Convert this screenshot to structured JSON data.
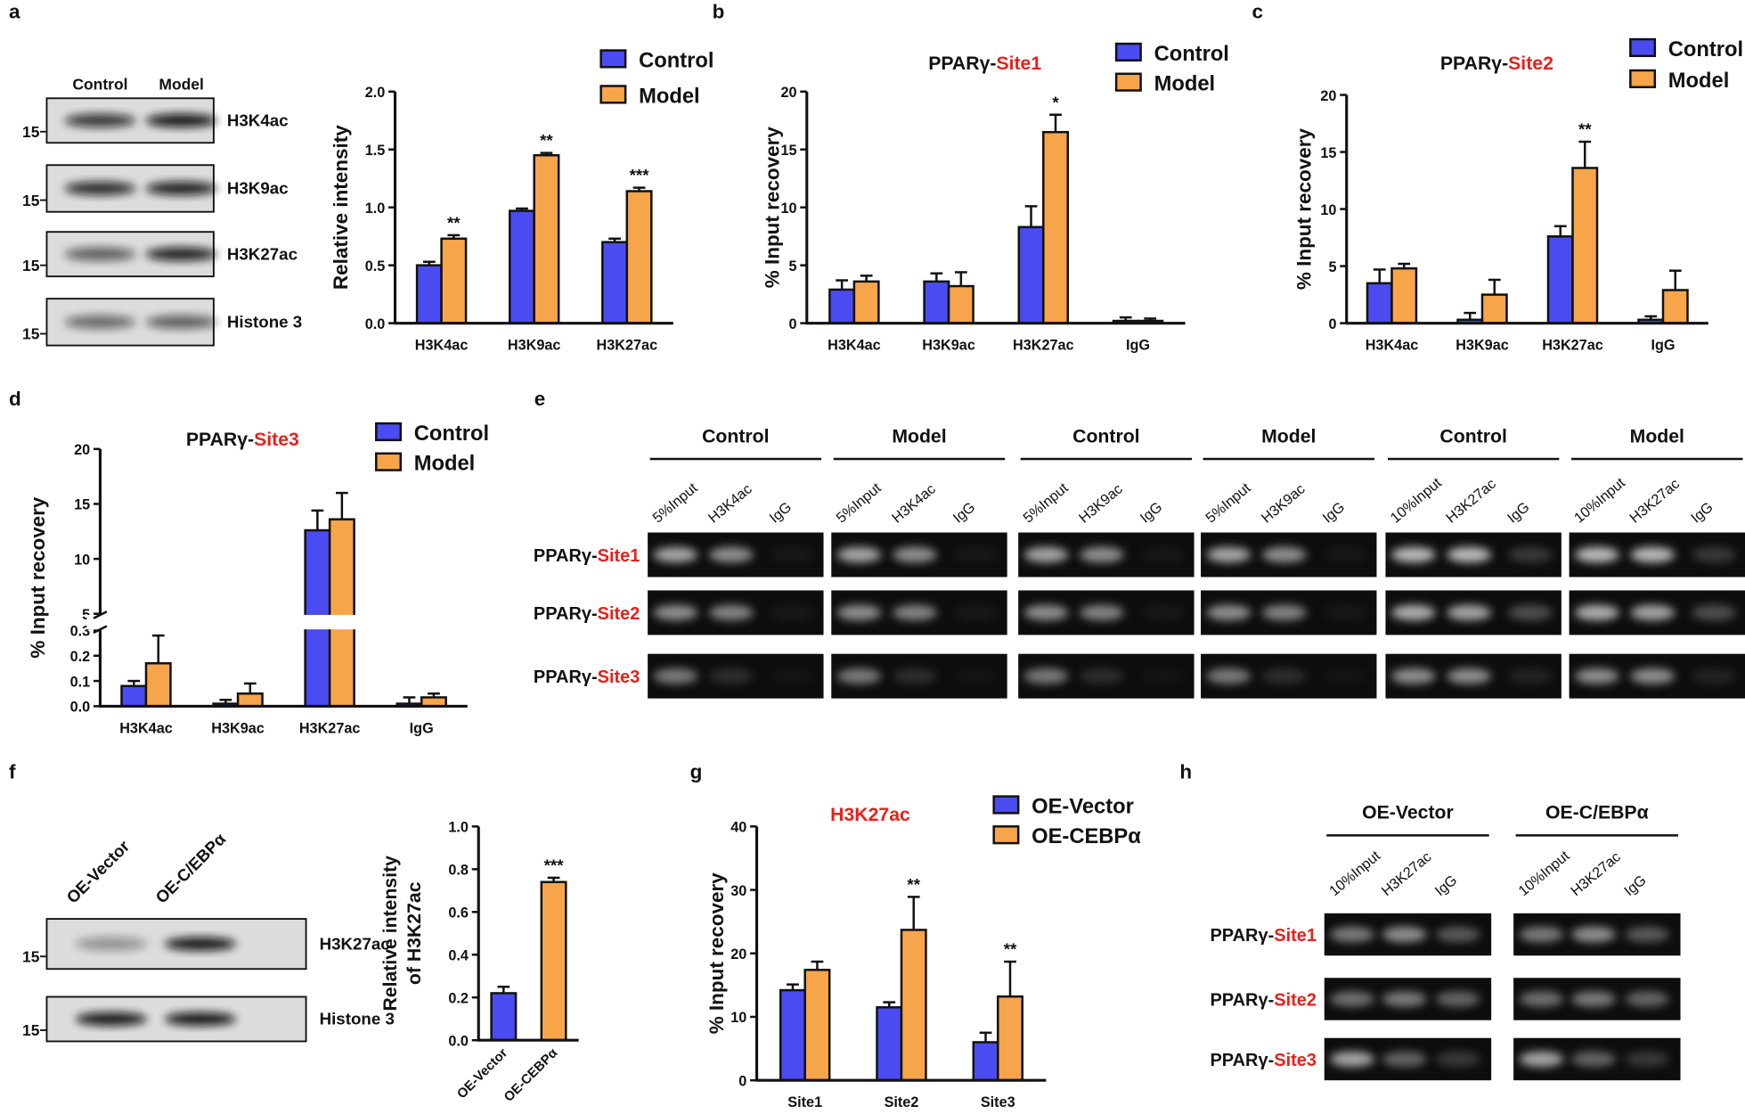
{
  "panel_labels": [
    "a",
    "b",
    "c",
    "d",
    "e",
    "f",
    "g",
    "h"
  ],
  "chart_data": [
    {
      "type": "bar",
      "ylabel": "Relative intensity",
      "categories": [
        "H3K4ac",
        "H3K9ac",
        "H3K27ac"
      ],
      "series": [
        {
          "name": "Control",
          "color": "#4b4bf2",
          "values": [
            0.5,
            0.97,
            0.7
          ],
          "errors": [
            0.03,
            0.02,
            0.03
          ]
        },
        {
          "name": "Model",
          "color": "#f7a54a",
          "values": [
            0.73,
            1.45,
            1.14
          ],
          "errors": [
            0.03,
            0.02,
            0.03
          ]
        }
      ],
      "annotations": [
        "**",
        "**",
        "***"
      ],
      "ylim": [
        0,
        2
      ],
      "yticks": [
        {
          "value": 0,
          "label": "0.0"
        },
        0.5,
        {
          "value": 1,
          "label": "1.0"
        },
        1.5,
        {
          "value": 2,
          "label": "2.0"
        }
      ]
    },
    {
      "type": "bar",
      "title": {
        "prefix": "PPARγ-",
        "highlight": "Site1"
      },
      "ylabel": "% Input recovery",
      "categories": [
        "H3K4ac",
        "H3K9ac",
        "H3K27ac",
        "IgG"
      ],
      "series": [
        {
          "name": "Control",
          "color": "#4b4bf2",
          "values": [
            2.9,
            3.6,
            8.3,
            0.2
          ],
          "errors": [
            0.8,
            0.7,
            1.8,
            0.3
          ]
        },
        {
          "name": "Model",
          "color": "#f7a54a",
          "values": [
            3.6,
            3.2,
            16.5,
            0.2
          ],
          "errors": [
            0.5,
            1.2,
            1.5,
            0.2
          ]
        }
      ],
      "annotations": [
        null,
        null,
        "*",
        null
      ],
      "ylim": [
        0,
        20
      ],
      "yticks": [
        0,
        5,
        10,
        15,
        20
      ]
    },
    {
      "type": "bar",
      "title": {
        "prefix": "PPARγ-",
        "highlight": "Site2"
      },
      "ylabel": "% Input recovery",
      "categories": [
        "H3K4ac",
        "H3K9ac",
        "H3K27ac",
        "IgG"
      ],
      "series": [
        {
          "name": "Control",
          "color": "#4b4bf2",
          "values": [
            3.5,
            0.3,
            7.6,
            0.3
          ],
          "errors": [
            1.2,
            0.6,
            0.9,
            0.3
          ]
        },
        {
          "name": "Model",
          "color": "#f7a54a",
          "values": [
            4.8,
            2.5,
            13.6,
            2.9
          ],
          "errors": [
            0.4,
            1.3,
            2.3,
            1.7
          ]
        }
      ],
      "annotations": [
        null,
        null,
        "**",
        null
      ],
      "ylim": [
        0,
        20
      ],
      "yticks": [
        0,
        5,
        10,
        15,
        20
      ]
    },
    {
      "type": "bar",
      "title": {
        "prefix": "PPARγ-",
        "highlight": "Site3"
      },
      "ylabel": "% Input recovery",
      "categories": [
        "H3K4ac",
        "H3K9ac",
        "H3K27ac",
        "IgG"
      ],
      "series": [
        {
          "name": "Control",
          "color": "#4b4bf2",
          "values": [
            0.08,
            0.01,
            12.6,
            0.01
          ],
          "errors": [
            0.02,
            0.015,
            1.8,
            0.025
          ]
        },
        {
          "name": "Model",
          "color": "#f7a54a",
          "values": [
            0.17,
            0.05,
            13.6,
            0.035
          ],
          "errors": [
            0.11,
            0.04,
            2.4,
            0.015
          ]
        }
      ],
      "ylim": [
        0,
        20
      ],
      "ybreak": [
        0.3,
        5
      ],
      "yticks": [
        {
          "value": 0,
          "label": "0.0"
        },
        0.1,
        0.2,
        0.3,
        5,
        10,
        15,
        20
      ]
    },
    {
      "type": "bar",
      "ylabel": [
        "Relative intensity",
        "of H3K27ac"
      ],
      "categories": [
        "OE-Vector",
        "OE-CEBPα"
      ],
      "series": [
        {
          "colors": [
            "#4b4bf2",
            "#f7a54a"
          ],
          "values": [
            0.22,
            0.74
          ],
          "errors": [
            0.03,
            0.02
          ]
        }
      ],
      "annotations": [
        null,
        "***"
      ],
      "ylim": [
        0,
        1
      ],
      "yticks": [
        {
          "value": 0,
          "label": "0.0"
        },
        0.2,
        0.4,
        0.6,
        0.8,
        {
          "value": 1,
          "label": "1.0"
        }
      ]
    },
    {
      "type": "bar",
      "title": {
        "highlight": "H3K27ac"
      },
      "ylabel": "% Input recovery",
      "categories": [
        "Site1",
        "Site2",
        "Site3"
      ],
      "series": [
        {
          "name": "OE-Vector",
          "color": "#4b4bf2",
          "values": [
            14.2,
            11.5,
            6.0
          ],
          "errors": [
            0.9,
            0.8,
            1.5
          ]
        },
        {
          "name": "OE-CEBPα",
          "color": "#f7a54a",
          "values": [
            17.4,
            23.7,
            13.2
          ],
          "errors": [
            1.3,
            5.2,
            5.5
          ]
        }
      ],
      "annotations": [
        null,
        "**",
        "**"
      ],
      "ylim": [
        0,
        40
      ],
      "yticks": [
        0,
        10,
        20,
        30,
        40
      ]
    }
  ],
  "blot_a": {
    "lanes": [
      "Control",
      "Model"
    ],
    "rows": [
      {
        "label": "H3K4ac",
        "marker": "15"
      },
      {
        "label": "H3K9ac",
        "marker": "15"
      },
      {
        "label": "H3K27ac",
        "marker": "15"
      },
      {
        "label": "Histone 3",
        "marker": "15"
      }
    ]
  },
  "blot_e": {
    "groups": [
      {
        "name": "Control",
        "lanes": [
          "5%Input",
          "H3K4ac",
          "IgG"
        ]
      },
      {
        "name": "Model",
        "lanes": [
          "5%Input",
          "H3K4ac",
          "IgG"
        ]
      },
      {
        "name": "Control",
        "lanes": [
          "5%Input",
          "H3K9ac",
          "IgG"
        ]
      },
      {
        "name": "Model",
        "lanes": [
          "5%Input",
          "H3K9ac",
          "IgG"
        ]
      },
      {
        "name": "Control",
        "lanes": [
          "10%Input",
          "H3K27ac",
          "IgG"
        ]
      },
      {
        "name": "Model",
        "lanes": [
          "10%Input",
          "H3K27ac",
          "IgG"
        ]
      }
    ],
    "rows": [
      {
        "prefix": "PPARγ-",
        "site": "Site1"
      },
      {
        "prefix": "PPARγ-",
        "site": "Site2"
      },
      {
        "prefix": "PPARγ-",
        "site": "Site3"
      }
    ]
  },
  "blot_f": {
    "lanes": [
      "OE-Vector",
      "OE-C/EBPα"
    ],
    "rows": [
      {
        "label": "H3K27ac",
        "marker": "15"
      },
      {
        "label": "Histone 3",
        "marker": "15"
      }
    ]
  },
  "blot_h": {
    "groups": [
      {
        "name": "OE-Vector",
        "lanes": [
          "10%Input",
          "H3K27ac",
          "IgG"
        ]
      },
      {
        "name": "OE-C/EBPα",
        "lanes": [
          "10%Input",
          "H3K27ac",
          "IgG"
        ]
      }
    ],
    "rows": [
      {
        "prefix": "PPARγ-",
        "site": "Site1"
      },
      {
        "prefix": "PPARγ-",
        "site": "Site2"
      },
      {
        "prefix": "PPARγ-",
        "site": "Site3"
      }
    ]
  }
}
